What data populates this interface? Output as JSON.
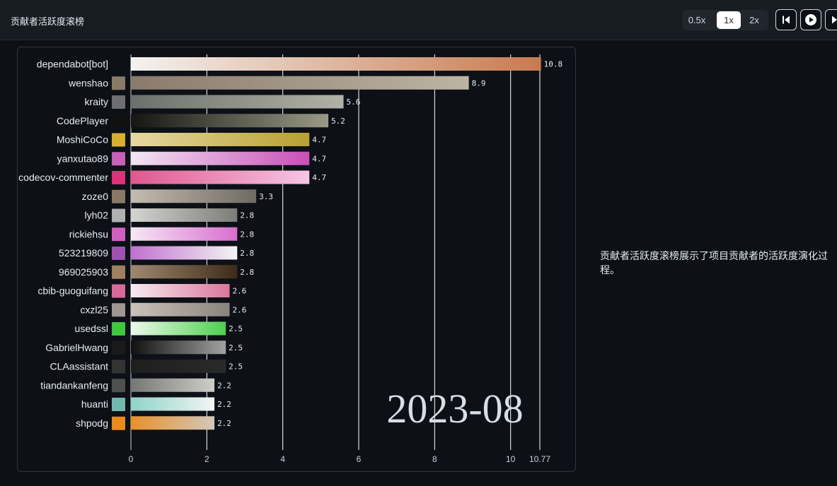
{
  "header": {
    "title": "贡献者活跃度滚榜",
    "speeds": [
      "0.5x",
      "1x",
      "2x"
    ],
    "active_speed": "1x"
  },
  "description": "贡献者活跃度滚榜展示了项目贡献者的活跃度演化过程。",
  "colors": {
    "background": "#0d1117",
    "header": "#171b22",
    "grid": "#ffffff"
  },
  "chart_data": {
    "type": "bar",
    "orientation": "horizontal",
    "period": "2023-08",
    "xlim": [
      0,
      10.77
    ],
    "x_ticks": [
      "0",
      "2",
      "4",
      "6",
      "8",
      "10",
      "10.77"
    ],
    "grid": true,
    "categories": [
      "dependabot[bot]",
      "wenshao",
      "kraity",
      "CodePlayer",
      "MoshiCoCo",
      "yanxutao89",
      "codecov-commenter",
      "zoze0",
      "lyh02",
      "rickiehsu",
      "523219809",
      "969025903",
      "cbib-guoguifang",
      "cxzl25",
      "usedssl",
      "GabrielHwang",
      "CLAassistant",
      "tiandankanfeng",
      "huanti",
      "shpodg"
    ],
    "values": [
      10.8,
      8.9,
      5.6,
      5.2,
      4.7,
      4.7,
      4.7,
      3.3,
      2.8,
      2.8,
      2.8,
      2.8,
      2.6,
      2.6,
      2.5,
      2.5,
      2.5,
      2.2,
      2.2,
      2.2
    ],
    "value_labels": [
      "10.8",
      "8.9",
      "5.6",
      "5.2",
      "4.7",
      "4.7",
      "4.7",
      "3.3",
      "2.8",
      "2.8",
      "2.8",
      "2.8",
      "2.6",
      "2.6",
      "2.5",
      "2.5",
      "2.5",
      "2.2",
      "2.2",
      "2.2"
    ],
    "bar_colors": [
      [
        "#f4f2ef",
        "#c87a4f"
      ],
      [
        "#8a7a6c",
        "#bcb5a3"
      ],
      [
        "#6c706d",
        "#b2b2a6"
      ],
      [
        "#151512",
        "#9a9a86"
      ],
      [
        "#e6d8a2",
        "#b8a032"
      ],
      [
        "#f2e6f2",
        "#c84fb8"
      ],
      [
        "#e0588e",
        "#f6c6e4"
      ],
      [
        "#c4bcb0",
        "#706a64"
      ],
      [
        "#d4d4d0",
        "#7c7c78"
      ],
      [
        "#f6e8f4",
        "#d86ed0"
      ],
      [
        "#c070d0",
        "#f4f4f4"
      ],
      [
        "#a08870",
        "#3e2c18"
      ],
      [
        "#f8eaf0",
        "#d8789a"
      ],
      [
        "#cac2b8",
        "#8a847e"
      ],
      [
        "#ecf8ec",
        "#4ed04e"
      ],
      [
        "#101010",
        "#a2a2a2"
      ],
      [
        "#1e1e1e",
        "#2a2a2a"
      ],
      [
        "#767674",
        "#cfcfc8"
      ],
      [
        "#8ed4c8",
        "#f4f4f4"
      ],
      [
        "#e8902c",
        "#d2c8b8"
      ]
    ],
    "avatar_colors": [
      "",
      "#8a7a68",
      "#6e6e72",
      "#111111",
      "#d8b030",
      "#c860b8",
      "#e0307a",
      "#8a7866",
      "#b0b0b0",
      "#d060c0",
      "#a050b0",
      "#a08060",
      "#d86a9a",
      "#9e9890",
      "#3ec83e",
      "#1a1a1a",
      "#333333",
      "#505050",
      "#70b8b0",
      "#e88a20"
    ]
  }
}
